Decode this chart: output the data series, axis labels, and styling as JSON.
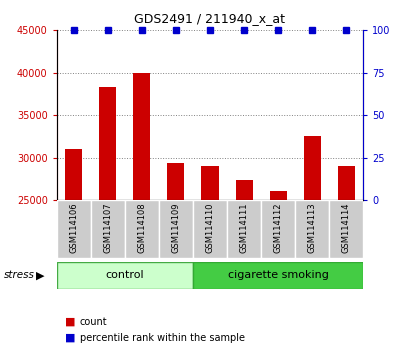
{
  "title": "GDS2491 / 211940_x_at",
  "samples": [
    "GSM114106",
    "GSM114107",
    "GSM114108",
    "GSM114109",
    "GSM114110",
    "GSM114111",
    "GSM114112",
    "GSM114113",
    "GSM114114"
  ],
  "counts": [
    31000,
    38300,
    40000,
    29300,
    29000,
    27300,
    26100,
    32500,
    29000
  ],
  "percentile_ranks": [
    100,
    100,
    100,
    100,
    100,
    100,
    100,
    100,
    100
  ],
  "ylim_left": [
    25000,
    45000
  ],
  "ylim_right": [
    0,
    100
  ],
  "yticks_left": [
    25000,
    30000,
    35000,
    40000,
    45000
  ],
  "yticks_right": [
    0,
    25,
    50,
    75,
    100
  ],
  "bar_color": "#cc0000",
  "dot_color": "#0000cc",
  "control_samples": 4,
  "group_labels": [
    "control",
    "cigarette smoking"
  ],
  "control_color": "#ccffcc",
  "smoking_color": "#44cc44",
  "stress_label": "stress",
  "legend_count_label": "count",
  "legend_percentile_label": "percentile rank within the sample",
  "axis_label_color_left": "#cc0000",
  "axis_label_color_right": "#0000cc",
  "xlabel_area_color": "#cccccc",
  "bar_width": 0.5
}
